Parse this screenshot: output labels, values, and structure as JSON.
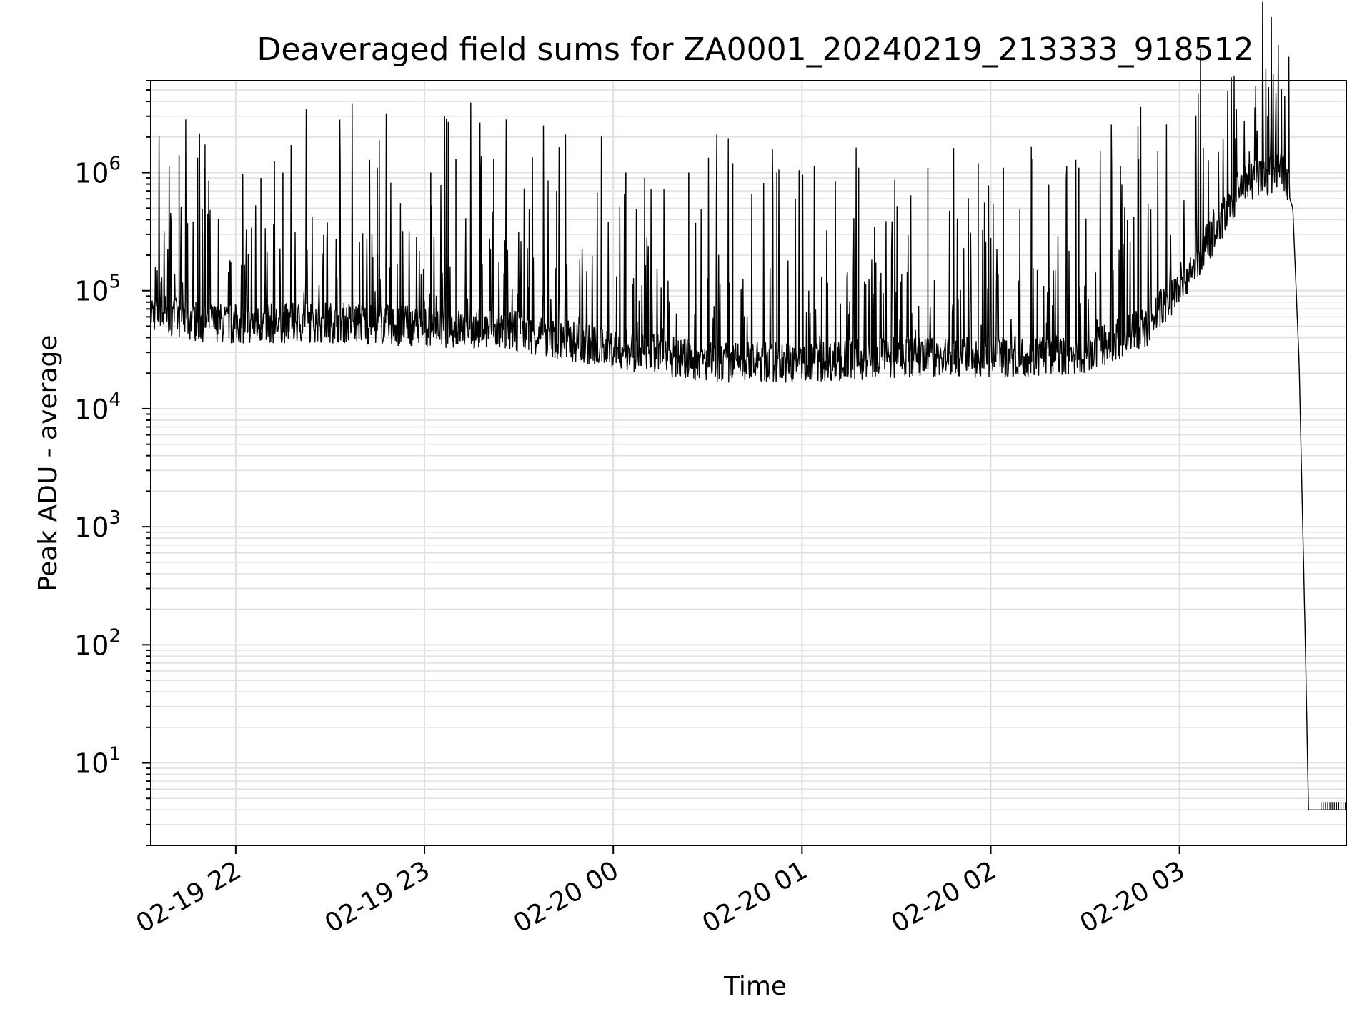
{
  "chart_data": {
    "type": "line",
    "title": "Deaveraged field sums for ZA0001_20240219_213333_918512",
    "xlabel": "Time",
    "ylabel": "Peak ADU - average",
    "yscale": "log",
    "ylim": [
      2,
      6000000
    ],
    "xlim": [
      "2024-02-19 21:33",
      "2024-02-20 03:53"
    ],
    "grid": true,
    "line_color": "#000000",
    "grid_color": "#e0e0e0",
    "x_ticks": [
      {
        "label": "02-19 22",
        "t": "2024-02-19 22:00"
      },
      {
        "label": "02-19 23",
        "t": "2024-02-19 23:00"
      },
      {
        "label": "02-20 00",
        "t": "2024-02-20 00:00"
      },
      {
        "label": "02-20 01",
        "t": "2024-02-20 01:00"
      },
      {
        "label": "02-20 02",
        "t": "2024-02-20 02:00"
      },
      {
        "label": "02-20 03",
        "t": "2024-02-20 03:00"
      }
    ],
    "y_ticks": [
      {
        "base": "10",
        "exp": "1",
        "value": 10
      },
      {
        "base": "10",
        "exp": "2",
        "value": 100
      },
      {
        "base": "10",
        "exp": "3",
        "value": 1000
      },
      {
        "base": "10",
        "exp": "4",
        "value": 10000
      },
      {
        "base": "10",
        "exp": "5",
        "value": 100000
      },
      {
        "base": "10",
        "exp": "6",
        "value": 1000000
      }
    ],
    "series": [
      {
        "color": "#000000",
        "baseline": [
          {
            "t": "2024-02-19 21:33",
            "v": 60000
          },
          {
            "t": "2024-02-19 21:45",
            "v": 50000
          },
          {
            "t": "2024-02-19 22:00",
            "v": 46000
          },
          {
            "t": "2024-02-19 22:30",
            "v": 48000
          },
          {
            "t": "2024-02-19 23:00",
            "v": 44000
          },
          {
            "t": "2024-02-19 23:30",
            "v": 40000
          },
          {
            "t": "2024-02-19 23:55",
            "v": 30000
          },
          {
            "t": "2024-02-20 00:30",
            "v": 22000
          },
          {
            "t": "2024-02-20 01:00",
            "v": 22000
          },
          {
            "t": "2024-02-20 01:30",
            "v": 24000
          },
          {
            "t": "2024-02-20 02:00",
            "v": 24000
          },
          {
            "t": "2024-02-20 02:30",
            "v": 26000
          },
          {
            "t": "2024-02-20 02:50",
            "v": 45000
          },
          {
            "t": "2024-02-20 03:05",
            "v": 150000
          },
          {
            "t": "2024-02-20 03:20",
            "v": 700000
          },
          {
            "t": "2024-02-20 03:33",
            "v": 900000
          },
          {
            "t": "2024-02-20 03:36",
            "v": 500000
          },
          {
            "t": "2024-02-20 03:38",
            "v": 25000
          },
          {
            "t": "2024-02-20 03:40",
            "v": 100
          },
          {
            "t": "2024-02-20 03:41",
            "v": 4
          },
          {
            "t": "2024-02-20 03:53",
            "v": 4
          }
        ],
        "spikes": [
          {
            "t": "2024-02-19 21:42",
            "v": 1400000
          },
          {
            "t": "2024-02-19 21:50",
            "v": 1100000
          },
          {
            "t": "2024-02-19 22:08",
            "v": 900000
          },
          {
            "t": "2024-02-19 22:15",
            "v": 1000000
          },
          {
            "t": "2024-02-19 22:45",
            "v": 1100000
          },
          {
            "t": "2024-02-19 23:02",
            "v": 1000000
          },
          {
            "t": "2024-02-19 23:10",
            "v": 1300000
          },
          {
            "t": "2024-02-19 23:22",
            "v": 1300000
          },
          {
            "t": "2024-02-19 23:42",
            "v": 700000
          },
          {
            "t": "2024-02-20 00:04",
            "v": 1000000
          },
          {
            "t": "2024-02-20 00:24",
            "v": 1000000
          },
          {
            "t": "2024-02-20 00:38",
            "v": 1200000
          },
          {
            "t": "2024-02-20 00:52",
            "v": 1000000
          },
          {
            "t": "2024-02-20 01:18",
            "v": 1100000
          },
          {
            "t": "2024-02-20 01:40",
            "v": 1100000
          },
          {
            "t": "2024-02-20 01:56",
            "v": 1200000
          },
          {
            "t": "2024-02-20 02:04",
            "v": 1100000
          },
          {
            "t": "2024-02-20 02:13",
            "v": 1300000
          },
          {
            "t": "2024-02-20 02:28",
            "v": 1100000
          },
          {
            "t": "2024-02-20 02:47",
            "v": 1300000
          },
          {
            "t": "2024-02-20 03:05",
            "v": 1500000
          },
          {
            "t": "2024-02-20 03:18",
            "v": 2400000
          },
          {
            "t": "2024-02-20 03:28",
            "v": 3000000
          }
        ]
      }
    ]
  }
}
